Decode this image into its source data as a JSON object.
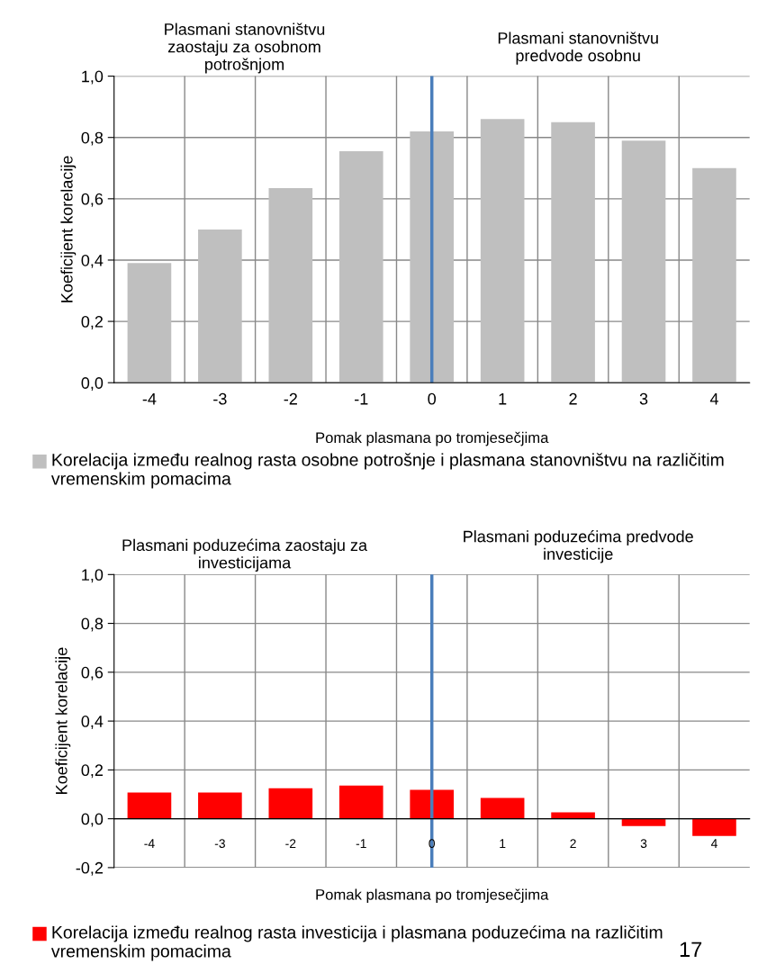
{
  "chart_data": [
    {
      "type": "bar",
      "categories": [
        "-4",
        "-3",
        "-2",
        "-1",
        "0",
        "1",
        "2",
        "3",
        "4"
      ],
      "series": [
        {
          "name": "Korelacija između realnog rasta osobne potrošnje i plasmana stanovništvu na različitim vremenskim pomacima",
          "color": "#bfbfbf",
          "values": [
            0.39,
            0.5,
            0.635,
            0.755,
            0.82,
            0.86,
            0.85,
            0.79,
            0.7
          ]
        }
      ],
      "xlabel": "Pomak plasmana po tromjesečjima",
      "ylabel": "Koeficijent korelacije",
      "ylim": [
        0,
        1
      ],
      "yticks": [
        {
          "value": 0,
          "label": "0,0"
        },
        {
          "value": 0.2,
          "label": "0,2"
        },
        {
          "value": 0.4,
          "label": "0,4"
        },
        {
          "value": 0.6,
          "label": "0,6"
        },
        {
          "value": 0.8,
          "label": "0,8"
        },
        {
          "value": 1,
          "label": "1,0"
        }
      ],
      "grid": true,
      "legend": "bottom",
      "ref_lines": [
        {
          "axis": "x",
          "value": "0",
          "color": "#4a7ebb"
        }
      ],
      "annotations": [
        "Plasmani stanovništvu zaostaju za osobnom potrošnjom",
        "Plasmani stanovništvu predvode osobnu"
      ]
    },
    {
      "type": "bar",
      "categories": [
        "-4",
        "-3",
        "-2",
        "-1",
        "0",
        "1",
        "2",
        "3",
        "4"
      ],
      "series": [
        {
          "name": "Korelacija između realnog rasta investicija i plasmana poduzećima na različitim vremenskim pomacima",
          "color": "#ff0000",
          "values": [
            0.107,
            0.107,
            0.125,
            0.136,
            0.118,
            0.085,
            0.026,
            -0.03,
            -0.07
          ]
        }
      ],
      "xlabel": "Pomak plasmana po tromjesečjima",
      "ylabel": "Koeficijent korelacije",
      "ylim": [
        -0.2,
        1
      ],
      "yticks": [
        {
          "value": -0.2,
          "label": "-0,2"
        },
        {
          "value": 0,
          "label": "0,0"
        },
        {
          "value": 0.2,
          "label": "0,2"
        },
        {
          "value": 0.4,
          "label": "0,4"
        },
        {
          "value": 0.6,
          "label": "0,6"
        },
        {
          "value": 0.8,
          "label": "0,8"
        },
        {
          "value": 1,
          "label": "1,0"
        }
      ],
      "grid": true,
      "legend": "bottom",
      "ref_lines": [
        {
          "axis": "x",
          "value": "0",
          "color": "#4a7ebb"
        }
      ],
      "annotations": [
        "Plasmani poduzećima zaostaju za investicijama",
        "Plasmani poduzećima predvode investicije",
        "17"
      ]
    }
  ]
}
